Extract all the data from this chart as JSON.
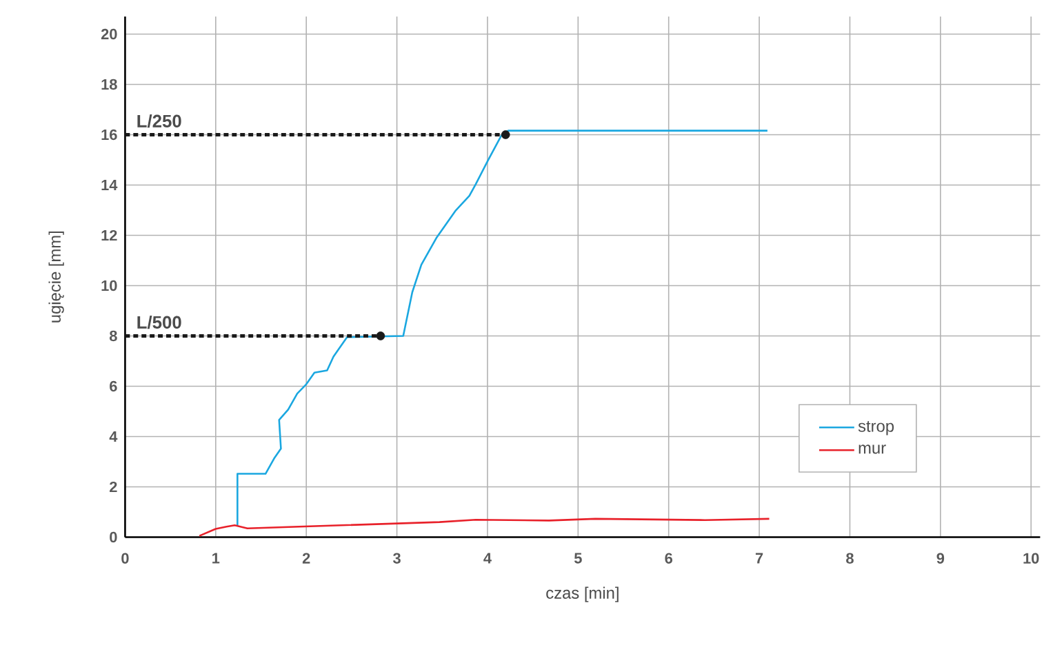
{
  "chart_data": {
    "type": "line",
    "xlabel": "czas [min]",
    "ylabel": "ugięcie [mm]",
    "xlim": [
      0,
      10.1
    ],
    "xticks": [
      0,
      1,
      2,
      3,
      4,
      5,
      6,
      7,
      8,
      9,
      10
    ],
    "ylim": [
      0,
      20.7
    ],
    "yticks": [
      0,
      2,
      4,
      6,
      8,
      10,
      12,
      14,
      16,
      18,
      20
    ],
    "grid": true,
    "legend": "right",
    "line_style": "solid",
    "marker": "none",
    "series": [
      {
        "name": "strop",
        "color": "#1aa7e0",
        "x": [
          1.24,
          1.24,
          1.55,
          1.65,
          1.72,
          1.7,
          1.8,
          1.9,
          2.0,
          2.09,
          2.23,
          2.3,
          2.45,
          2.81,
          3.07,
          3.17,
          3.27,
          3.44,
          3.65,
          3.8,
          3.87,
          4.0,
          4.15,
          4.23,
          7.09
        ],
        "values": [
          0.45,
          2.52,
          2.52,
          3.16,
          3.52,
          4.66,
          5.07,
          5.71,
          6.08,
          6.54,
          6.63,
          7.18,
          7.95,
          7.98,
          8.0,
          9.74,
          10.83,
          11.92,
          12.99,
          13.57,
          14.03,
          14.94,
          15.95,
          16.16,
          16.16
        ]
      },
      {
        "name": "mur",
        "color": "#e8212a",
        "x": [
          0.82,
          1.0,
          1.12,
          1.21,
          1.35,
          3.47,
          3.87,
          4.68,
          5.19,
          6.4,
          7.11
        ],
        "values": [
          0.05,
          0.33,
          0.42,
          0.47,
          0.35,
          0.6,
          0.69,
          0.66,
          0.73,
          0.68,
          0.73
        ]
      },
      {
        "type": "line",
        "color": "#1a1a1a",
        "line_style": "dashed",
        "marker": "circle",
        "x": [
          0,
          2.82
        ],
        "values": [
          8,
          8
        ]
      },
      {
        "type": "line",
        "color": "#1a1a1a",
        "line_style": "dashed",
        "marker": "circle",
        "x": [
          0,
          4.2
        ],
        "values": [
          16,
          16
        ]
      }
    ],
    "annotations": [
      {
        "text": "L/500",
        "x": 0,
        "y": 8
      },
      {
        "text": "L/250",
        "x": 0,
        "y": 16
      }
    ]
  }
}
